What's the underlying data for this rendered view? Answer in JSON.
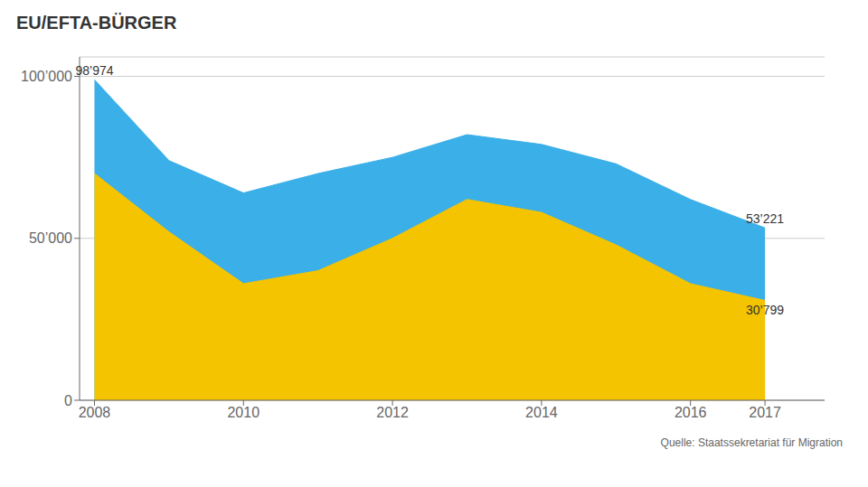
{
  "chart_data": {
    "type": "area",
    "title": "EU/EFTA-BÜRGER",
    "source": "Quelle: Staatssekretariat für Migration",
    "x": [
      2008,
      2009,
      2010,
      2011,
      2012,
      2013,
      2014,
      2015,
      2016,
      2017
    ],
    "series": [
      {
        "color": "#3AAFE8",
        "values": [
          98974,
          74000,
          64000,
          70000,
          75000,
          82000,
          79000,
          73000,
          62000,
          53221
        ]
      },
      {
        "color": "#F5C400",
        "values": [
          70000,
          52000,
          36000,
          40000,
          50000,
          62000,
          58000,
          48000,
          36000,
          30799
        ]
      }
    ],
    "xlim": [
      2007.8,
      2017.8
    ],
    "xticks": [
      2008,
      2010,
      2012,
      2014,
      2016,
      2017
    ],
    "ylim": [
      0,
      106000
    ],
    "yticks": [
      0,
      {
        "value": 50000,
        "label": "50’000"
      },
      {
        "value": 100000,
        "label": "100’000"
      }
    ],
    "grid": true,
    "annotations": [
      {
        "text": "98’974",
        "x": 2008,
        "y": 98974
      },
      {
        "text": "53’221",
        "x": 2017,
        "y": 53221
      },
      {
        "text": "30’799",
        "x": 2017,
        "y": 30799
      }
    ]
  }
}
